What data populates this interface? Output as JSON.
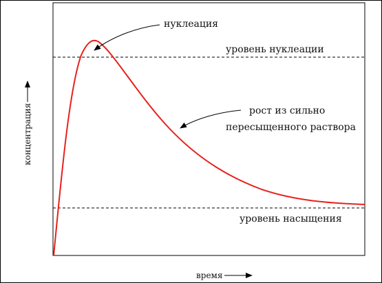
{
  "diagram": {
    "labels": {
      "nucleation": "нуклеация",
      "nucleation_level": "уровень нуклеации",
      "growth_line1": "рост из сильно",
      "growth_line2": "пересыщенного раствора",
      "saturation_level": "уровень насыщения"
    },
    "axes": {
      "x_label": "время",
      "y_label": "концентрация"
    },
    "colors": {
      "curve": "#e8201a",
      "lines": "#000000"
    }
  }
}
